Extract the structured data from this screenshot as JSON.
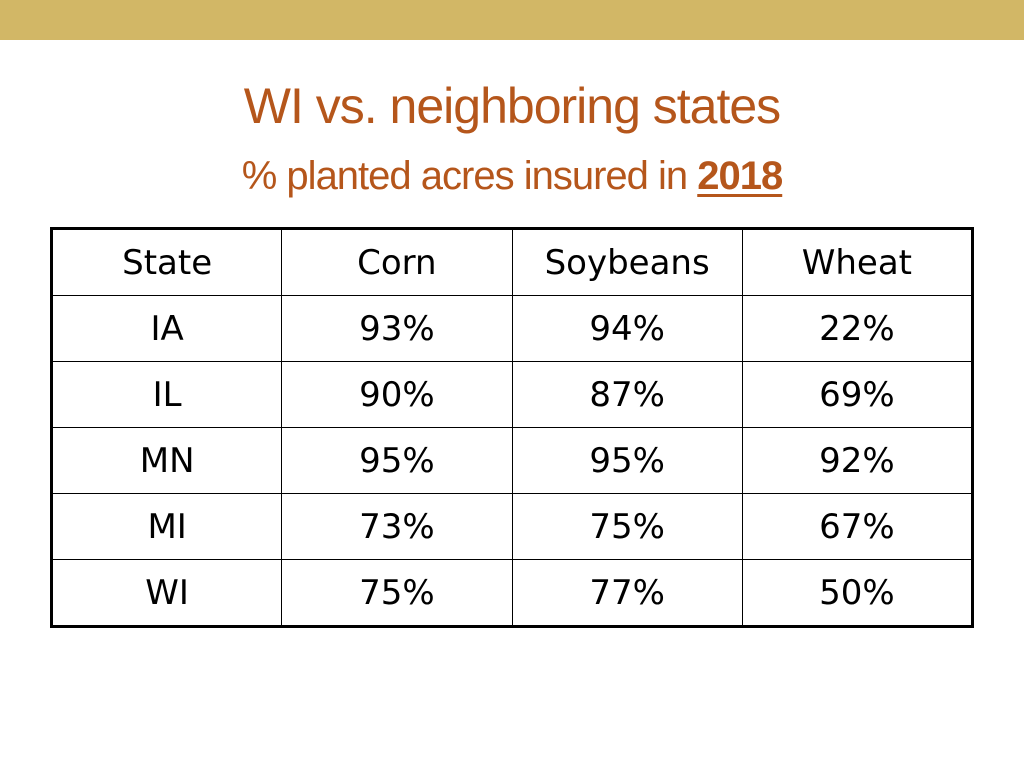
{
  "colors": {
    "top_band": "#d2b766",
    "title": "#b5561b",
    "background": "#ffffff"
  },
  "title": "WI vs. neighboring states",
  "subtitle": {
    "text": "% planted acres insured in ",
    "year": "2018"
  },
  "table": {
    "headers": [
      "State",
      "Corn",
      "Soybeans",
      "Wheat"
    ],
    "rows": [
      [
        "IA",
        "93%",
        "94%",
        "22%"
      ],
      [
        "IL",
        "90%",
        "87%",
        "69%"
      ],
      [
        "MN",
        "95%",
        "95%",
        "92%"
      ],
      [
        "MI",
        "73%",
        "75%",
        "67%"
      ],
      [
        "WI",
        "75%",
        "77%",
        "50%"
      ]
    ]
  }
}
